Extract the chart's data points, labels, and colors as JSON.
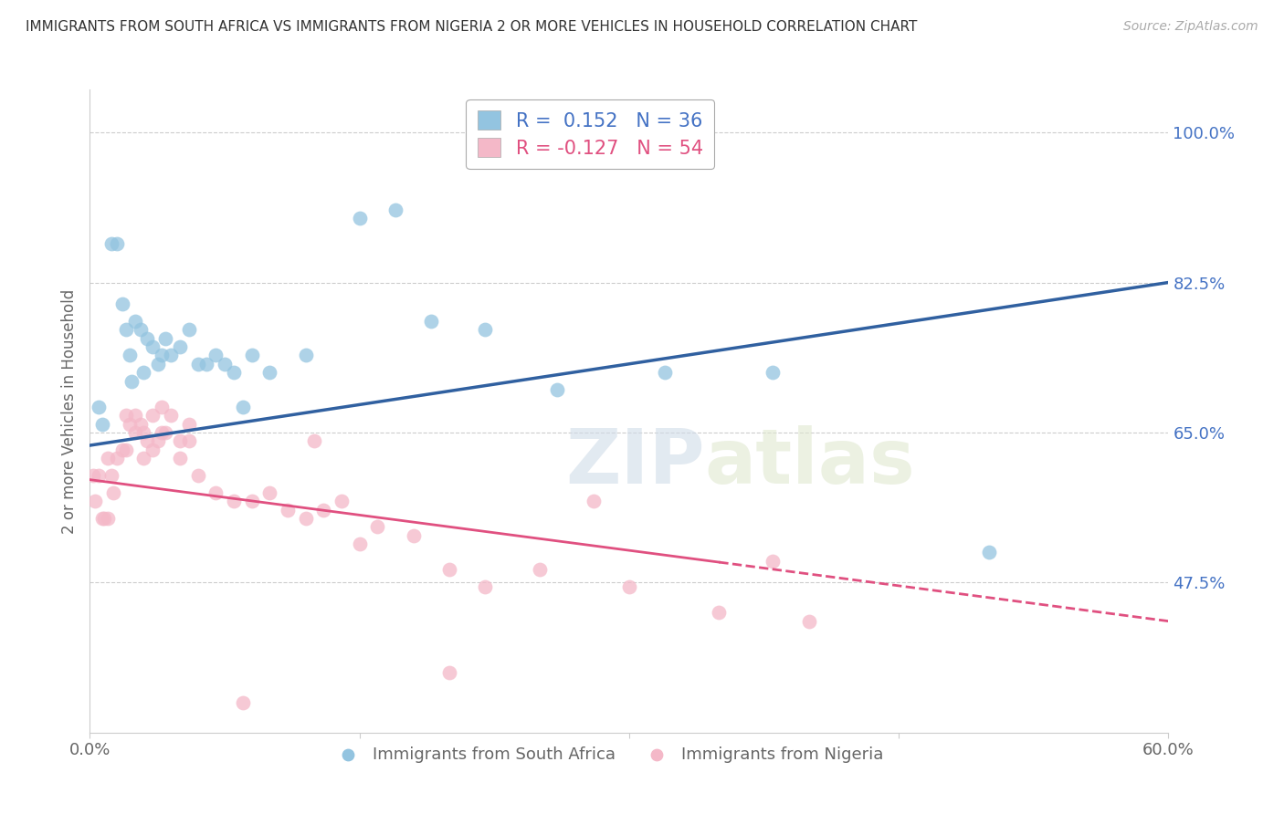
{
  "title": "IMMIGRANTS FROM SOUTH AFRICA VS IMMIGRANTS FROM NIGERIA 2 OR MORE VEHICLES IN HOUSEHOLD CORRELATION CHART",
  "source": "Source: ZipAtlas.com",
  "ylabel": "2 or more Vehicles in Household",
  "blue_R": 0.152,
  "blue_N": 36,
  "pink_R": -0.127,
  "pink_N": 54,
  "blue_color": "#93c4e0",
  "pink_color": "#f4b8c8",
  "blue_line_color": "#3060a0",
  "pink_line_color": "#e05080",
  "background_color": "#ffffff",
  "watermark_zip": "ZIP",
  "watermark_atlas": "atlas",
  "xlim": [
    0,
    60
  ],
  "ylim": [
    30,
    105
  ],
  "ytick_positions": [
    47.5,
    65.0,
    82.5,
    100.0
  ],
  "xtick_positions": [
    0,
    15,
    30,
    45,
    60
  ],
  "blue_line_x0": 0,
  "blue_line_y0": 63.5,
  "blue_line_x1": 60,
  "blue_line_y1": 82.5,
  "pink_line_x0": 0,
  "pink_line_y0": 59.5,
  "pink_line_x1": 60,
  "pink_line_y1": 43.0,
  "pink_solid_xmax": 35,
  "blue_points_x": [
    0.5,
    0.7,
    1.2,
    1.5,
    1.8,
    2.0,
    2.2,
    2.3,
    2.5,
    2.8,
    3.0,
    3.2,
    3.5,
    3.8,
    4.0,
    4.2,
    4.5,
    5.0,
    5.5,
    6.0,
    6.5,
    7.0,
    7.5,
    8.0,
    9.0,
    10.0,
    12.0,
    15.0,
    17.0,
    19.0,
    22.0,
    26.0,
    32.0,
    38.0,
    50.0,
    8.5
  ],
  "blue_points_y": [
    68.0,
    66.0,
    87.0,
    87.0,
    80.0,
    77.0,
    74.0,
    71.0,
    78.0,
    77.0,
    72.0,
    76.0,
    75.0,
    73.0,
    74.0,
    76.0,
    74.0,
    75.0,
    77.0,
    73.0,
    73.0,
    74.0,
    73.0,
    72.0,
    74.0,
    72.0,
    74.0,
    90.0,
    91.0,
    78.0,
    77.0,
    70.0,
    72.0,
    72.0,
    51.0,
    68.0
  ],
  "pink_points_x": [
    0.2,
    0.3,
    0.5,
    0.7,
    0.8,
    1.0,
    1.0,
    1.2,
    1.3,
    1.5,
    1.8,
    2.0,
    2.0,
    2.2,
    2.5,
    2.5,
    2.8,
    3.0,
    3.0,
    3.2,
    3.5,
    3.5,
    3.8,
    4.0,
    4.0,
    4.2,
    4.5,
    5.0,
    5.0,
    5.5,
    5.5,
    6.0,
    7.0,
    8.0,
    9.0,
    10.0,
    11.0,
    12.0,
    13.0,
    14.0,
    15.0,
    16.0,
    18.0,
    20.0,
    22.0,
    25.0,
    28.0,
    30.0,
    35.0,
    38.0,
    40.0,
    12.5,
    20.0,
    8.5
  ],
  "pink_points_y": [
    60.0,
    57.0,
    60.0,
    55.0,
    55.0,
    55.0,
    62.0,
    60.0,
    58.0,
    62.0,
    63.0,
    63.0,
    67.0,
    66.0,
    65.0,
    67.0,
    66.0,
    65.0,
    62.0,
    64.0,
    63.0,
    67.0,
    64.0,
    65.0,
    68.0,
    65.0,
    67.0,
    64.0,
    62.0,
    64.0,
    66.0,
    60.0,
    58.0,
    57.0,
    57.0,
    58.0,
    56.0,
    55.0,
    56.0,
    57.0,
    52.0,
    54.0,
    53.0,
    49.0,
    47.0,
    49.0,
    57.0,
    47.0,
    44.0,
    50.0,
    43.0,
    64.0,
    37.0,
    33.5
  ],
  "figsize": [
    14.06,
    8.92
  ],
  "dpi": 100
}
